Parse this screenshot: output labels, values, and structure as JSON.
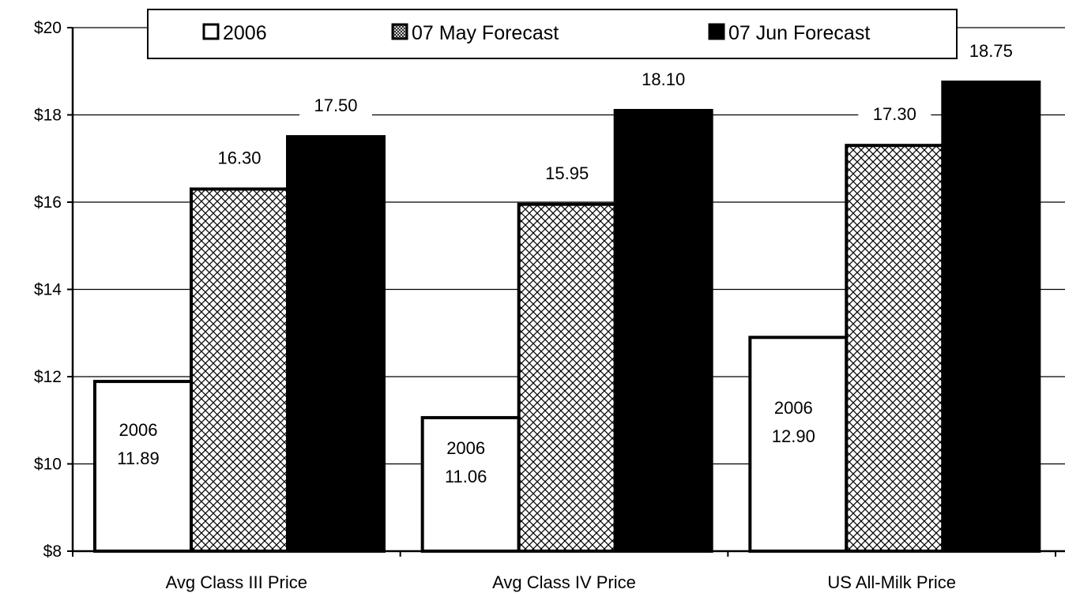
{
  "chart_data": {
    "type": "bar",
    "title": "",
    "xlabel": "",
    "ylabel": "",
    "ylim": [
      8,
      20
    ],
    "y_ticks": [
      8,
      10,
      12,
      14,
      16,
      18,
      20
    ],
    "y_tick_labels": [
      "$8",
      "$10",
      "$12",
      "$14",
      "$16",
      "$18",
      "$20"
    ],
    "grid": true,
    "legend_position": "top",
    "categories": [
      "Avg Class III Price",
      "Avg Class IV Price",
      "US All-Milk Price"
    ],
    "series": [
      {
        "name": "2006",
        "values": [
          11.89,
          11.06,
          12.9
        ],
        "labels": [
          "2006\n11.89",
          "2006\n11.06",
          "2006\n12.90"
        ],
        "label_position": "inside",
        "fill": "white"
      },
      {
        "name": "07 May Forecast",
        "values": [
          16.3,
          15.95,
          17.3
        ],
        "labels": [
          "16.30",
          "15.95",
          "17.30"
        ],
        "label_position": "above",
        "fill": "crosshatch"
      },
      {
        "name": "07 Jun Forecast",
        "values": [
          17.5,
          18.1,
          18.75
        ],
        "labels": [
          "17.50",
          "18.10",
          "18.75"
        ],
        "label_position": "above",
        "fill": "black"
      }
    ],
    "colors": {
      "2006": "#ffffff",
      "07 May Forecast": "#ffffff",
      "07 Jun Forecast": "#000000",
      "outline": "#000000",
      "gridline": "#000000"
    }
  }
}
